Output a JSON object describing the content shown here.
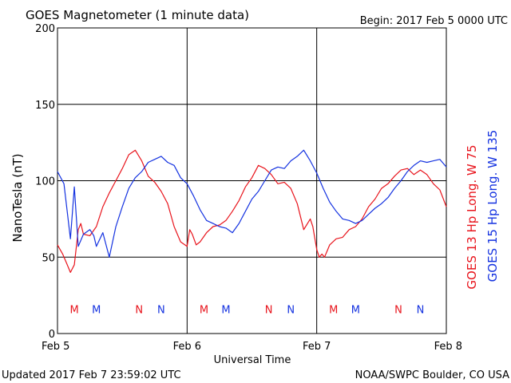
{
  "colors": {
    "goes13": "#e8141c",
    "goes15": "#1432e0",
    "grid": "#000000",
    "background": "#ffffff"
  },
  "header": {
    "title": "GOES Magnetometer (1 minute data)",
    "begin": "Begin:  2017 Feb 5 0000 UTC"
  },
  "footer": {
    "updated": "Updated 2017 Feb  7 23:59:02 UTC",
    "credit": "NOAA/SWPC Boulder, CO USA"
  },
  "chart_data": {
    "type": "line",
    "title": "GOES Magnetometer (1 minute data)",
    "xlabel": "Universal Time",
    "ylabel": "NanoTesla (nT)",
    "xlim": [
      0,
      3
    ],
    "ylim": [
      0,
      200
    ],
    "x_ticks": [
      {
        "value": 0,
        "label": "Feb 5"
      },
      {
        "value": 1,
        "label": "Feb 6"
      },
      {
        "value": 2,
        "label": "Feb 7"
      },
      {
        "value": 3,
        "label": "Feb 8"
      }
    ],
    "y_ticks": [
      0,
      50,
      100,
      150,
      200
    ],
    "grid": true,
    "legend_placement": "right",
    "series": [
      {
        "name": "GOES 13 Hp  Long. W 75",
        "color": "#e8141c",
        "x_unit": "days since Feb 5 0000 UTC",
        "x": [
          0.0,
          0.04,
          0.07,
          0.1,
          0.13,
          0.16,
          0.18,
          0.2,
          0.25,
          0.3,
          0.35,
          0.4,
          0.45,
          0.5,
          0.55,
          0.6,
          0.65,
          0.7,
          0.75,
          0.8,
          0.85,
          0.9,
          0.95,
          1.0,
          1.02,
          1.04,
          1.07,
          1.1,
          1.15,
          1.2,
          1.25,
          1.3,
          1.35,
          1.4,
          1.45,
          1.5,
          1.55,
          1.6,
          1.65,
          1.7,
          1.75,
          1.8,
          1.85,
          1.9,
          1.95,
          1.97,
          2.0,
          2.02,
          2.04,
          2.06,
          2.08,
          2.1,
          2.15,
          2.2,
          2.25,
          2.3,
          2.35,
          2.4,
          2.45,
          2.5,
          2.55,
          2.6,
          2.65,
          2.7,
          2.75,
          2.8,
          2.85,
          2.9,
          2.95,
          3.0
        ],
        "values": [
          58,
          52,
          46,
          40,
          45,
          68,
          72,
          65,
          64,
          70,
          83,
          92,
          100,
          108,
          117,
          120,
          113,
          103,
          99,
          93,
          85,
          70,
          60,
          57,
          68,
          65,
          58,
          60,
          66,
          70,
          71,
          74,
          80,
          87,
          96,
          102,
          110,
          108,
          104,
          98,
          99,
          95,
          85,
          68,
          75,
          70,
          55,
          50,
          52,
          50,
          54,
          58,
          62,
          63,
          68,
          70,
          75,
          83,
          88,
          95,
          98,
          103,
          107,
          108,
          104,
          107,
          104,
          98,
          94,
          83
        ]
      },
      {
        "name": "GOES 15 Hp  Long. W 135",
        "color": "#1432e0",
        "x_unit": "days since Feb 5 0000 UTC",
        "x": [
          0.0,
          0.05,
          0.1,
          0.13,
          0.16,
          0.2,
          0.25,
          0.28,
          0.3,
          0.35,
          0.4,
          0.45,
          0.5,
          0.55,
          0.6,
          0.65,
          0.7,
          0.75,
          0.8,
          0.85,
          0.9,
          0.95,
          1.0,
          1.05,
          1.1,
          1.15,
          1.2,
          1.25,
          1.3,
          1.35,
          1.4,
          1.45,
          1.5,
          1.55,
          1.6,
          1.65,
          1.7,
          1.75,
          1.8,
          1.85,
          1.9,
          1.95,
          2.0,
          2.05,
          2.1,
          2.15,
          2.2,
          2.25,
          2.3,
          2.35,
          2.4,
          2.45,
          2.5,
          2.55,
          2.6,
          2.65,
          2.7,
          2.75,
          2.8,
          2.85,
          2.9,
          2.95,
          3.0
        ],
        "values": [
          106,
          98,
          62,
          96,
          57,
          65,
          68,
          64,
          57,
          66,
          50,
          70,
          83,
          95,
          102,
          106,
          112,
          114,
          116,
          112,
          110,
          102,
          98,
          90,
          81,
          74,
          72,
          70,
          69,
          66,
          72,
          80,
          88,
          93,
          100,
          107,
          109,
          108,
          113,
          116,
          120,
          113,
          105,
          95,
          86,
          80,
          75,
          74,
          72,
          74,
          78,
          82,
          85,
          89,
          95,
          100,
          106,
          110,
          113,
          112,
          113,
          114,
          109
        ]
      }
    ],
    "annotations": [
      {
        "text": "M",
        "x": 0.13,
        "y": 16,
        "color": "#e8141c"
      },
      {
        "text": "M",
        "x": 0.3,
        "y": 16,
        "color": "#1432e0"
      },
      {
        "text": "N",
        "x": 0.63,
        "y": 16,
        "color": "#e8141c"
      },
      {
        "text": "N",
        "x": 0.8,
        "y": 16,
        "color": "#1432e0"
      },
      {
        "text": "M",
        "x": 1.13,
        "y": 16,
        "color": "#e8141c"
      },
      {
        "text": "M",
        "x": 1.3,
        "y": 16,
        "color": "#1432e0"
      },
      {
        "text": "N",
        "x": 1.63,
        "y": 16,
        "color": "#e8141c"
      },
      {
        "text": "N",
        "x": 1.8,
        "y": 16,
        "color": "#1432e0"
      },
      {
        "text": "M",
        "x": 2.13,
        "y": 16,
        "color": "#e8141c"
      },
      {
        "text": "M",
        "x": 2.3,
        "y": 16,
        "color": "#1432e0"
      },
      {
        "text": "N",
        "x": 2.63,
        "y": 16,
        "color": "#e8141c"
      },
      {
        "text": "N",
        "x": 2.8,
        "y": 16,
        "color": "#1432e0"
      }
    ]
  }
}
